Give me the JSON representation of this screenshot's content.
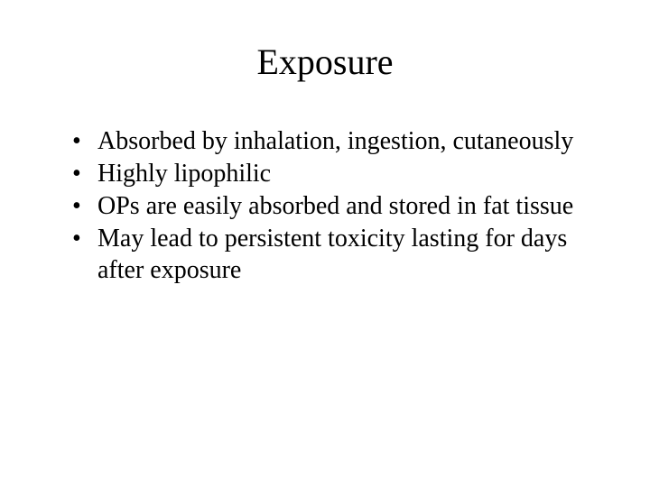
{
  "slide": {
    "title": "Exposure",
    "title_fontsize": 40,
    "body_fontsize": 28,
    "font_family": "Times New Roman",
    "background_color": "#ffffff",
    "text_color": "#000000",
    "bullets": [
      "Absorbed by inhalation, ingestion, cutaneously",
      "Highly lipophilic",
      "OPs are easily absorbed and stored in fat tissue",
      "May lead to persistent toxicity lasting for days after exposure"
    ]
  }
}
